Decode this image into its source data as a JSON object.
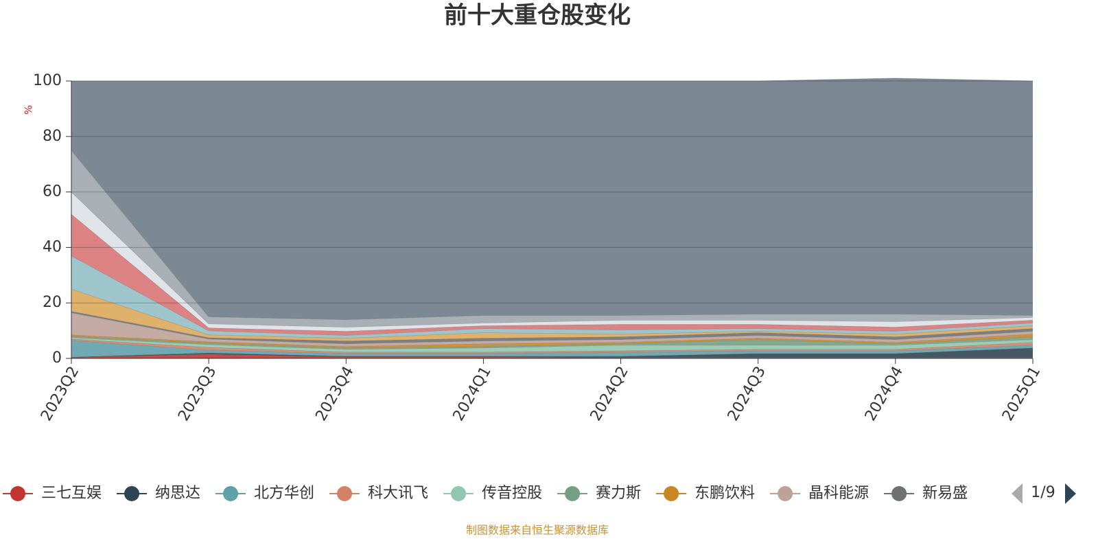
{
  "chart_data": {
    "type": "stacked_area",
    "title": "前十大重仓股变化",
    "y_label": "%",
    "categories": [
      "2023Q2",
      "2023Q3",
      "2023Q4",
      "2024Q1",
      "2024Q2",
      "2024Q3",
      "2024Q4",
      "2025Q1"
    ],
    "ylim": [
      0,
      100
    ],
    "yticks": [
      0,
      20,
      40,
      60,
      80,
      100
    ],
    "grid": true,
    "series": [
      {
        "name": "三七互娱",
        "color": "#c23531",
        "values": [
          0.3,
          1.5,
          0.5,
          0.5,
          0.3,
          0.3,
          0.3,
          0.3
        ]
      },
      {
        "name": "纳思达",
        "color": "#2f4554",
        "values": [
          0.2,
          0.5,
          0.3,
          0.3,
          0.5,
          1.5,
          1.5,
          3.5
        ]
      },
      {
        "name": "北方华创",
        "color": "#61a0a8",
        "values": [
          6,
          1,
          1,
          1,
          1.5,
          1,
          1,
          1
        ]
      },
      {
        "name": "科大讯飞",
        "color": "#d48265",
        "values": [
          0.5,
          1,
          0.5,
          0.5,
          0.5,
          0.5,
          0.5,
          1
        ]
      },
      {
        "name": "传音控股",
        "color": "#91c7ae",
        "values": [
          0.5,
          1,
          1,
          1.5,
          2,
          1.5,
          1.5,
          1
        ]
      },
      {
        "name": "赛力斯",
        "color": "#749f83",
        "values": [
          0.5,
          0.5,
          0.5,
          0.5,
          0.5,
          2,
          0.5,
          1
        ]
      },
      {
        "name": "东鹏饮料",
        "color": "#ca8622",
        "values": [
          0.5,
          0.5,
          0.5,
          1,
          0.5,
          0.5,
          0.5,
          1
        ]
      },
      {
        "name": "晶科能源",
        "color": "#bda29a",
        "values": [
          8,
          1,
          1,
          1,
          1,
          1,
          1,
          1
        ]
      },
      {
        "name": "新易盛",
        "color": "#6e7074",
        "values": [
          0.5,
          0.5,
          1,
          1,
          1,
          1,
          1,
          1
        ]
      },
      {
        "color": "#dba85a",
        "values": [
          8,
          1,
          1,
          2,
          1,
          0.5,
          1,
          1
        ]
      },
      {
        "color": "#93bfc6",
        "values": [
          12,
          1.5,
          1,
          1.5,
          1.5,
          1,
          1,
          1
        ]
      },
      {
        "color": "#d97474",
        "values": [
          15,
          1,
          1.5,
          1,
          2,
          1.5,
          1.5,
          1
        ]
      },
      {
        "color": "#dde1e7",
        "values": [
          8,
          1.5,
          1.5,
          1,
          1.5,
          1.5,
          2,
          1
        ]
      },
      {
        "color": "#a0a7ad",
        "values": [
          15,
          2.5,
          2.7,
          2.7,
          1.7,
          2.2,
          2.7,
          0.7
        ]
      },
      {
        "color": "#6e7b87",
        "values": [
          25,
          85,
          86,
          84.5,
          84.5,
          84,
          85,
          84.5
        ]
      }
    ],
    "legend_page": "1/9",
    "source": "制图数据来自恒生聚源数据库"
  }
}
